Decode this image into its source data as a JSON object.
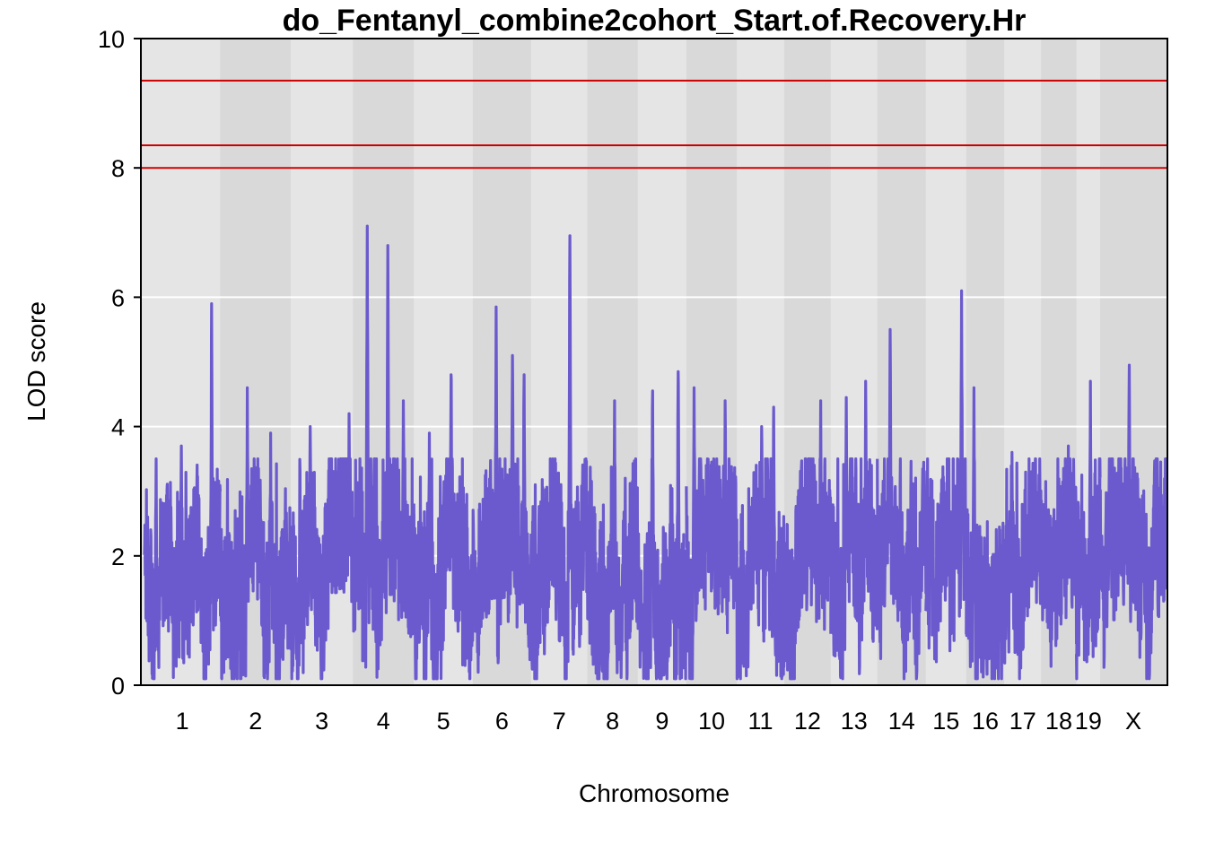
{
  "chart_data": {
    "type": "line",
    "title": "do_Fentanyl_combine2cohort_Start.of.Recovery.Hr",
    "xlabel": "Chromosome",
    "ylabel": "LOD score",
    "ylim": [
      0,
      10
    ],
    "yticks": [
      0,
      2,
      4,
      6,
      8,
      10
    ],
    "grid": true,
    "chromosomes": [
      {
        "label": "1",
        "start": 0,
        "end": 195
      },
      {
        "label": "2",
        "start": 195,
        "end": 377
      },
      {
        "label": "3",
        "start": 377,
        "end": 537
      },
      {
        "label": "4",
        "start": 537,
        "end": 694
      },
      {
        "label": "5",
        "start": 694,
        "end": 846
      },
      {
        "label": "6",
        "start": 846,
        "end": 996
      },
      {
        "label": "7",
        "start": 996,
        "end": 1141
      },
      {
        "label": "8",
        "start": 1141,
        "end": 1271
      },
      {
        "label": "9",
        "start": 1271,
        "end": 1396
      },
      {
        "label": "10",
        "start": 1396,
        "end": 1526
      },
      {
        "label": "11",
        "start": 1526,
        "end": 1648
      },
      {
        "label": "12",
        "start": 1648,
        "end": 1768
      },
      {
        "label": "13",
        "start": 1768,
        "end": 1888
      },
      {
        "label": "14",
        "start": 1888,
        "end": 2013
      },
      {
        "label": "15",
        "start": 2013,
        "end": 2117
      },
      {
        "label": "16",
        "start": 2117,
        "end": 2215
      },
      {
        "label": "17",
        "start": 2215,
        "end": 2310
      },
      {
        "label": "18",
        "start": 2310,
        "end": 2401
      },
      {
        "label": "19",
        "start": 2401,
        "end": 2462
      },
      {
        "label": "X",
        "start": 2462,
        "end": 2633
      }
    ],
    "thresholds": [
      8.0,
      8.35,
      9.35
    ],
    "peaks": [
      {
        "chr": "1",
        "pos": 30,
        "lod": 3.5
      },
      {
        "chr": "1",
        "pos": 95,
        "lod": 3.7
      },
      {
        "chr": "1",
        "pos": 173,
        "lod": 5.9
      },
      {
        "chr": "2",
        "pos": 70,
        "lod": 4.6
      },
      {
        "chr": "2",
        "pos": 130,
        "lod": 3.9
      },
      {
        "chr": "3",
        "pos": 50,
        "lod": 4.0
      },
      {
        "chr": "3",
        "pos": 150,
        "lod": 4.2
      },
      {
        "chr": "4",
        "pos": 37,
        "lod": 7.1
      },
      {
        "chr": "4",
        "pos": 90,
        "lod": 6.8
      },
      {
        "chr": "4",
        "pos": 130,
        "lod": 4.4
      },
      {
        "chr": "5",
        "pos": 40,
        "lod": 3.9
      },
      {
        "chr": "5",
        "pos": 96,
        "lod": 4.8
      },
      {
        "chr": "6",
        "pos": 60,
        "lod": 5.85
      },
      {
        "chr": "6",
        "pos": 102,
        "lod": 5.1
      },
      {
        "chr": "6",
        "pos": 132,
        "lod": 4.8
      },
      {
        "chr": "7",
        "pos": 100,
        "lod": 6.95
      },
      {
        "chr": "8",
        "pos": 70,
        "lod": 4.4
      },
      {
        "chr": "9",
        "pos": 38,
        "lod": 4.55
      },
      {
        "chr": "9",
        "pos": 104,
        "lod": 4.85
      },
      {
        "chr": "10",
        "pos": 20,
        "lod": 4.6
      },
      {
        "chr": "10",
        "pos": 100,
        "lod": 4.4
      },
      {
        "chr": "11",
        "pos": 64,
        "lod": 4.0
      },
      {
        "chr": "11",
        "pos": 95,
        "lod": 4.3
      },
      {
        "chr": "12",
        "pos": 94,
        "lod": 4.4
      },
      {
        "chr": "13",
        "pos": 40,
        "lod": 4.45
      },
      {
        "chr": "13",
        "pos": 90,
        "lod": 4.7
      },
      {
        "chr": "14",
        "pos": 33,
        "lod": 5.5
      },
      {
        "chr": "15",
        "pos": 92,
        "lod": 6.1
      },
      {
        "chr": "16",
        "pos": 20,
        "lod": 4.6
      },
      {
        "chr": "17",
        "pos": 20,
        "lod": 3.6
      },
      {
        "chr": "18",
        "pos": 70,
        "lod": 3.7
      },
      {
        "chr": "19",
        "pos": 36,
        "lod": 4.7
      },
      {
        "chr": "X",
        "pos": 75,
        "lod": 4.95
      }
    ],
    "baseline_range": [
      0.1,
      3.5
    ],
    "colors": {
      "line": "#6a5acd",
      "threshold": "#cc0000",
      "band_light": "#e5e5e5",
      "band_dark": "#d9d9d9",
      "gridline": "#ffffff"
    }
  }
}
